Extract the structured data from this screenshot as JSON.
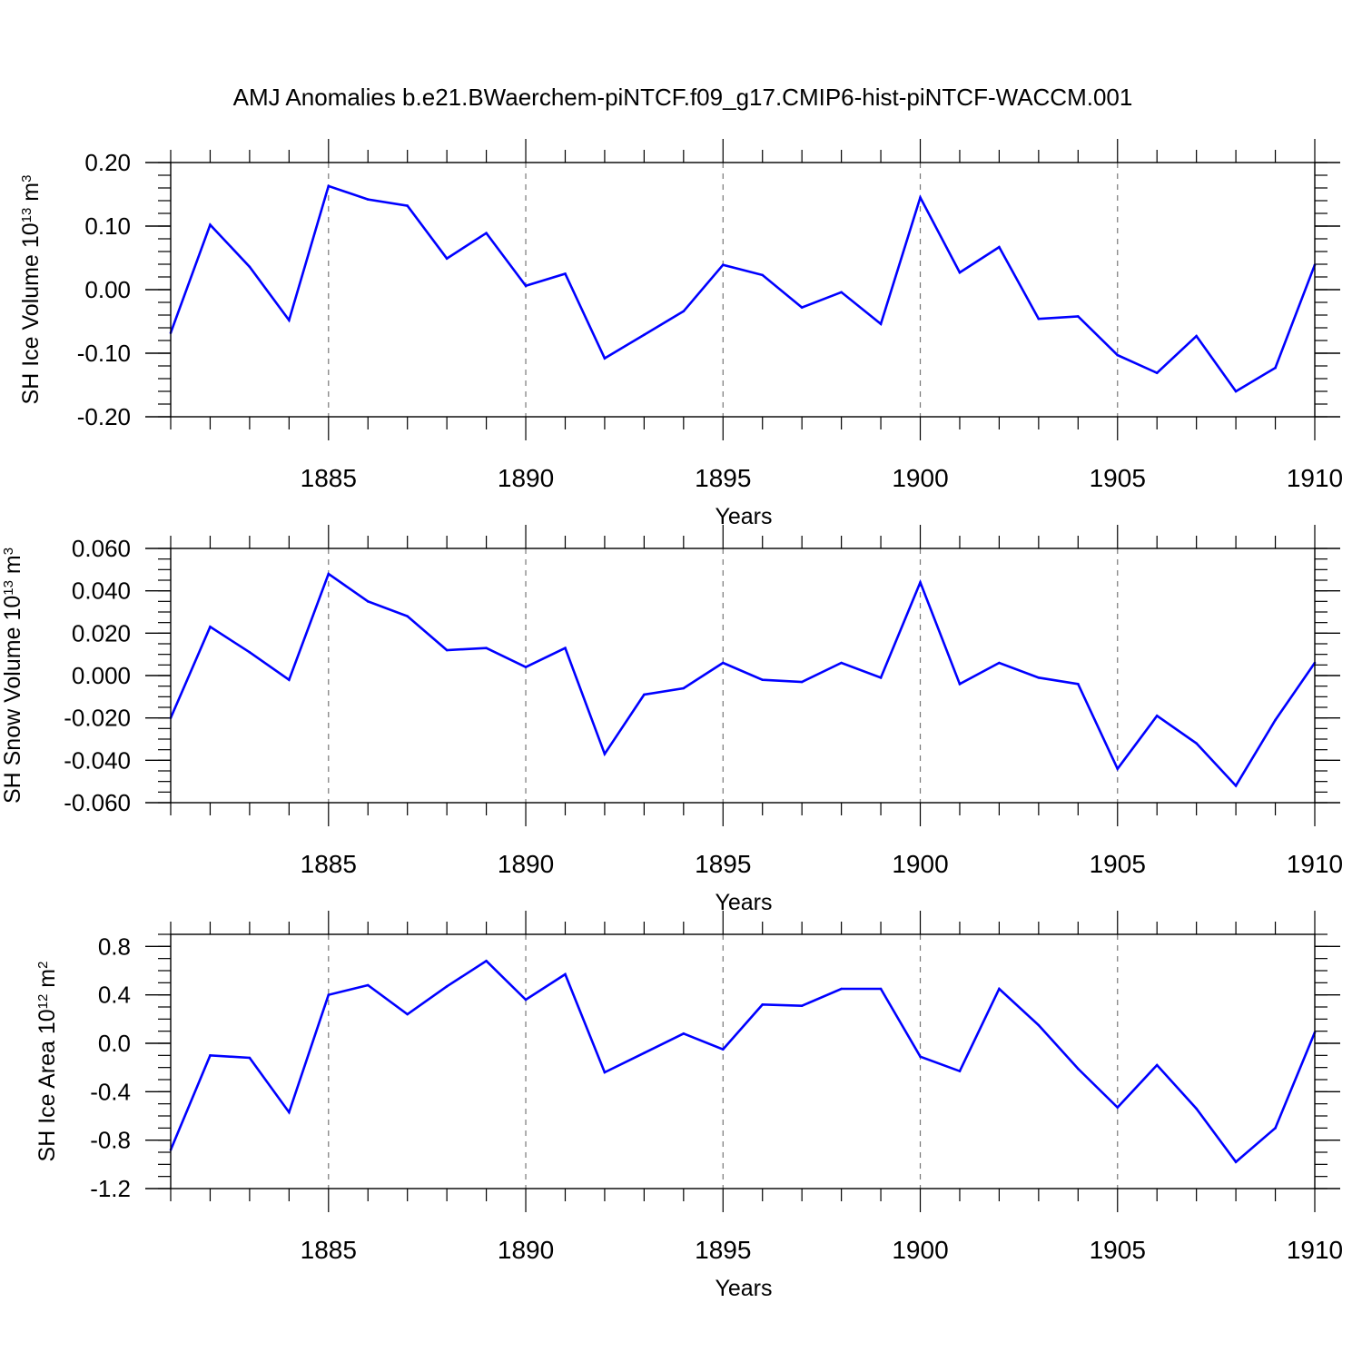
{
  "title": "AMJ Anomalies b.e21.BWaerchem-piNTCF.f09_g17.CMIP6-hist-piNTCF-WACCM.001",
  "colors": {
    "line": "#0000ff",
    "axis": "#000000",
    "grid": "#777777"
  },
  "chart_data": [
    {
      "type": "line",
      "title": "AMJ Anomalies b.e21.BWaerchem-piNTCF.f09_g17.CMIP6-hist-piNTCF-WACCM.001",
      "xlabel": "Years",
      "ylabel": {
        "text": "SH Ice Volume 10",
        "exp": "13",
        "unit": " m",
        "unit_exp": "3"
      },
      "xlim": [
        1881,
        1910
      ],
      "ylim": [
        -0.2,
        0.2
      ],
      "grid": "dashed vertical lines at major x ticks",
      "x_ticks": [
        1885,
        1890,
        1895,
        1900,
        1905,
        1910
      ],
      "x_tick_labels": [
        "1885",
        "1890",
        "1895",
        "1900",
        "1905",
        "1910"
      ],
      "y_ticks": [
        0.2,
        0.1,
        0.0,
        -0.1,
        -0.2
      ],
      "y_tick_labels": [
        "0.20",
        "0.10",
        "0.00",
        "-0.10",
        "-0.20"
      ],
      "y_minor_step": 0.02,
      "x": [
        1881,
        1882,
        1883,
        1884,
        1885,
        1886,
        1887,
        1888,
        1889,
        1890,
        1891,
        1892,
        1893,
        1894,
        1895,
        1896,
        1897,
        1898,
        1899,
        1900,
        1901,
        1902,
        1903,
        1904,
        1905,
        1906,
        1907,
        1908,
        1909,
        1910
      ],
      "series": [
        {
          "name": "SH Ice Volume",
          "values": [
            -0.068,
            0.102,
            0.036,
            -0.048,
            0.163,
            0.142,
            0.132,
            0.049,
            0.089,
            0.006,
            0.025,
            -0.108,
            -0.071,
            -0.034,
            0.039,
            0.023,
            -0.028,
            -0.004,
            -0.054,
            0.145,
            0.027,
            0.067,
            -0.046,
            -0.042,
            -0.103,
            -0.131,
            -0.073,
            -0.16,
            -0.123,
            0.039
          ]
        }
      ]
    },
    {
      "type": "line",
      "xlabel": "Years",
      "ylabel": {
        "text": "SH Snow Volume 10",
        "exp": "13",
        "unit": " m",
        "unit_exp": "3"
      },
      "xlim": [
        1881,
        1910
      ],
      "ylim": [
        -0.06,
        0.06
      ],
      "grid": "dashed vertical lines at major x ticks",
      "x_ticks": [
        1885,
        1890,
        1895,
        1900,
        1905,
        1910
      ],
      "x_tick_labels": [
        "1885",
        "1890",
        "1895",
        "1900",
        "1905",
        "1910"
      ],
      "y_ticks": [
        0.06,
        0.04,
        0.02,
        0.0,
        -0.02,
        -0.04,
        -0.06
      ],
      "y_tick_labels": [
        "0.060",
        "0.040",
        "0.020",
        "0.000",
        "-0.020",
        "-0.040",
        "-0.060"
      ],
      "y_minor_step": 0.005,
      "x": [
        1881,
        1882,
        1883,
        1884,
        1885,
        1886,
        1887,
        1888,
        1889,
        1890,
        1891,
        1892,
        1893,
        1894,
        1895,
        1896,
        1897,
        1898,
        1899,
        1900,
        1901,
        1902,
        1903,
        1904,
        1905,
        1906,
        1907,
        1908,
        1909,
        1910
      ],
      "series": [
        {
          "name": "SH Snow Volume",
          "values": [
            -0.02,
            0.023,
            0.011,
            -0.002,
            0.048,
            0.035,
            0.028,
            0.012,
            0.013,
            0.004,
            0.013,
            -0.037,
            -0.009,
            -0.006,
            0.006,
            -0.002,
            -0.003,
            0.006,
            -0.001,
            0.044,
            -0.004,
            0.006,
            -0.001,
            -0.004,
            -0.044,
            -0.019,
            -0.032,
            -0.052,
            -0.021,
            0.006
          ]
        }
      ]
    },
    {
      "type": "line",
      "xlabel": "Years",
      "ylabel": {
        "text": "SH Ice Area 10",
        "exp": "12",
        "unit": " m",
        "unit_exp": "2"
      },
      "xlim": [
        1881,
        1910
      ],
      "ylim": [
        -1.2,
        0.9
      ],
      "grid": "dashed vertical lines at major x ticks",
      "x_ticks": [
        1885,
        1890,
        1895,
        1900,
        1905,
        1910
      ],
      "x_tick_labels": [
        "1885",
        "1890",
        "1895",
        "1900",
        "1905",
        "1910"
      ],
      "y_ticks": [
        0.8,
        0.4,
        0.0,
        -0.4,
        -0.8,
        -1.2
      ],
      "y_tick_labels": [
        "0.8",
        "0.4",
        "0.0",
        "-0.4",
        "-0.8",
        "-1.2"
      ],
      "y_minor_step": 0.1,
      "x": [
        1881,
        1882,
        1883,
        1884,
        1885,
        1886,
        1887,
        1888,
        1889,
        1890,
        1891,
        1892,
        1893,
        1894,
        1895,
        1896,
        1897,
        1898,
        1899,
        1900,
        1901,
        1902,
        1903,
        1904,
        1905,
        1906,
        1907,
        1908,
        1909,
        1910
      ],
      "series": [
        {
          "name": "SH Ice Area",
          "values": [
            -0.88,
            -0.1,
            -0.12,
            -0.57,
            0.4,
            0.48,
            0.24,
            0.47,
            0.68,
            0.36,
            0.57,
            -0.24,
            -0.08,
            0.08,
            -0.05,
            0.32,
            0.31,
            0.45,
            0.45,
            -0.11,
            -0.23,
            0.45,
            0.15,
            -0.21,
            -0.53,
            -0.18,
            -0.54,
            -0.98,
            -0.7,
            0.09
          ]
        }
      ]
    }
  ]
}
